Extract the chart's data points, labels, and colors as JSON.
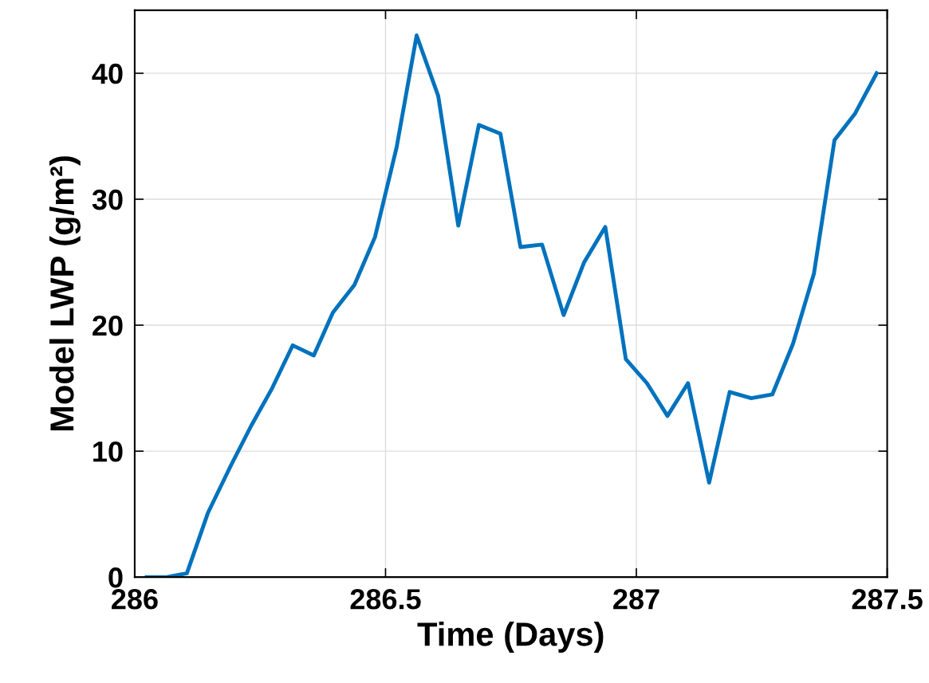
{
  "chart_data": {
    "type": "line",
    "xlabel": "Time (Days)",
    "ylabel": "Model LWP (g/m²)",
    "x": [
      286.024,
      286.064,
      286.104,
      286.146,
      286.191,
      286.232,
      286.274,
      286.315,
      286.357,
      286.395,
      286.438,
      286.479,
      286.522,
      286.562,
      286.605,
      286.645,
      286.686,
      286.729,
      286.769,
      286.812,
      286.855,
      286.896,
      286.938,
      286.979,
      287.021,
      287.062,
      287.103,
      287.145,
      287.186,
      287.229,
      287.271,
      287.312,
      287.354,
      287.395,
      287.436,
      287.479
    ],
    "series": [
      {
        "color": "#0072bd",
        "values": [
          0,
          0,
          0.3,
          5.1,
          8.8,
          12.0,
          15.0,
          18.4,
          17.6,
          21.0,
          23.2,
          27.0,
          34.1,
          43.0,
          38.2,
          27.9,
          35.9,
          35.2,
          26.2,
          26.4,
          20.8,
          25.0,
          27.8,
          17.3,
          15.4,
          12.8,
          15.4,
          7.5,
          14.7,
          14.2,
          14.5,
          18.5,
          24.1,
          34.7,
          36.8,
          40.0
        ]
      }
    ],
    "xlim": [
      286,
      287.5
    ],
    "xticks": [
      286,
      286.5,
      287,
      287.5
    ],
    "ylim": [
      0,
      45
    ],
    "yticks": [
      0,
      10,
      20,
      30,
      40
    ],
    "grid": true,
    "marker": "none",
    "line_style": "solid"
  }
}
